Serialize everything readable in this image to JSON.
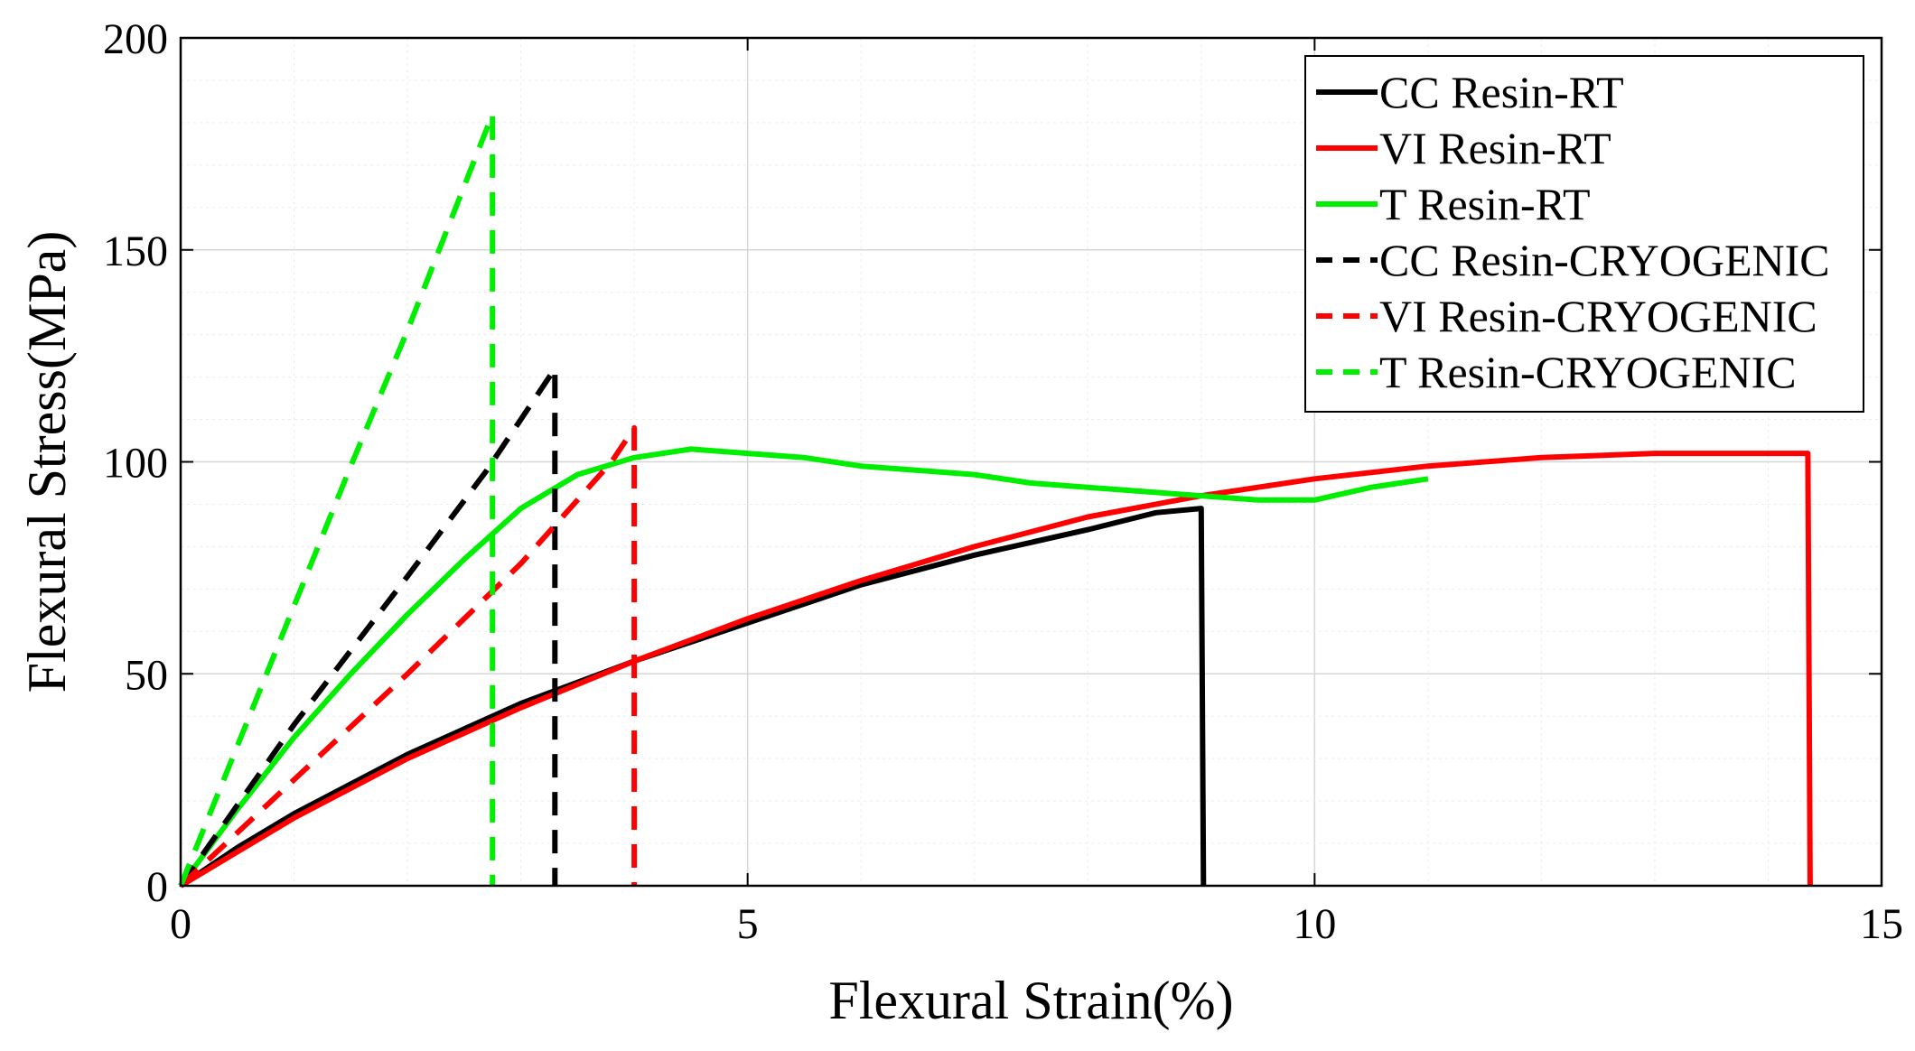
{
  "chart_data": {
    "type": "line",
    "title": "",
    "xlabel": "Flexural Strain(%)",
    "ylabel": "Flexural Stress(MPa)",
    "xlim": [
      0,
      15
    ],
    "ylim": [
      0,
      200
    ],
    "xticks": [
      0,
      5,
      10,
      15
    ],
    "yticks": [
      0,
      50,
      100,
      150,
      200
    ],
    "grid": true,
    "legend_position": "top-right",
    "series": [
      {
        "name": "CC Resin-RT",
        "color": "#000000",
        "style": "solid",
        "x": [
          0,
          0.5,
          1,
          2,
          3,
          4,
          5,
          6,
          7,
          8,
          8.6,
          9.0,
          9.02
        ],
        "y": [
          0,
          9,
          17,
          31,
          43,
          53,
          62,
          71,
          78,
          84,
          88,
          89,
          0
        ]
      },
      {
        "name": "VI Resin-RT",
        "color": "#ff0000",
        "style": "solid",
        "x": [
          0,
          0.5,
          1,
          2,
          3,
          4,
          5,
          6,
          7,
          8,
          9,
          10,
          11,
          12,
          13,
          14,
          14.35,
          14.37
        ],
        "y": [
          0,
          8,
          16,
          30,
          42,
          53,
          63,
          72,
          80,
          87,
          92,
          96,
          99,
          101,
          102,
          102,
          102,
          0
        ]
      },
      {
        "name": "T Resin-RT",
        "color": "#00ee00",
        "style": "solid",
        "x": [
          0,
          0.5,
          1,
          1.5,
          2,
          2.5,
          3,
          3.5,
          4,
          4.5,
          5,
          5.5,
          6,
          6.5,
          7,
          7.5,
          8,
          8.5,
          9,
          9.5,
          10,
          10.5,
          11
        ],
        "y": [
          0,
          18,
          35,
          50,
          64,
          77,
          89,
          97,
          101,
          103,
          102,
          101,
          99,
          98,
          97,
          95,
          94,
          93,
          92,
          91,
          91,
          94,
          96
        ]
      },
      {
        "name": "CC Resin-CRYOGENIC",
        "color": "#000000",
        "style": "dashed",
        "x": [
          0,
          1,
          2,
          2.7,
          3.3,
          3.3
        ],
        "y": [
          0,
          38,
          73,
          98,
          122,
          0
        ]
      },
      {
        "name": "VI Resin-CRYOGENIC",
        "color": "#ff0000",
        "style": "dashed",
        "x": [
          0,
          1,
          2,
          3,
          3.8,
          4.0,
          4.0
        ],
        "y": [
          0,
          25,
          50,
          76,
          100,
          108,
          0
        ]
      },
      {
        "name": "T Resin-CRYOGENIC",
        "color": "#00ee00",
        "style": "dashed",
        "x": [
          0,
          0.5,
          1,
          1.5,
          2,
          2.5,
          2.75,
          2.75
        ],
        "y": [
          0,
          33,
          66,
          99,
          131,
          165,
          182,
          0
        ]
      }
    ]
  }
}
